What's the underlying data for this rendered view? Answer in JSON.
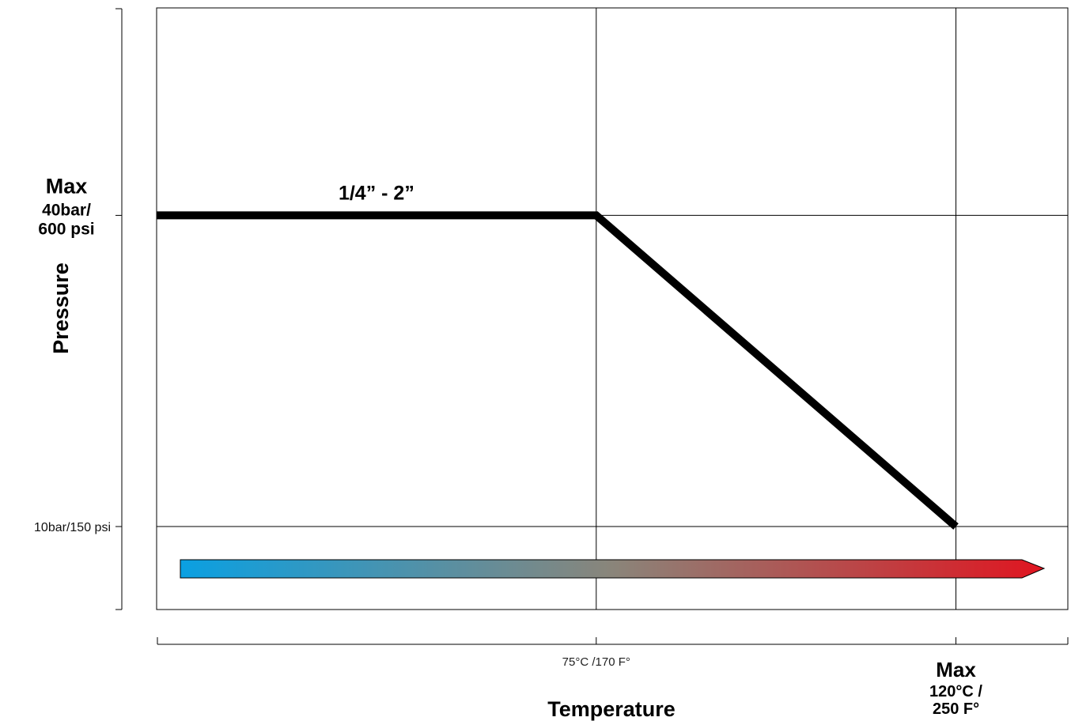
{
  "chart_data": {
    "type": "line",
    "title": "",
    "xlabel": "Temperature",
    "ylabel": "Pressure",
    "x_unit": "°C",
    "y_unit": "bar",
    "xlim": [
      20,
      134
    ],
    "ylim": [
      2,
      60
    ],
    "series": [
      {
        "name": "1/4” - 2”",
        "x": [
          20,
          75,
          120
        ],
        "y": [
          40,
          40,
          10
        ]
      }
    ],
    "x_ticks": [
      {
        "value": 75,
        "label": "75°C /170 F°",
        "emphasis": false
      },
      {
        "value": 120,
        "label_lines": [
          "Max",
          "120°C /",
          "250 F°"
        ],
        "emphasis": true
      }
    ],
    "y_ticks": [
      {
        "value": 40,
        "label_lines": [
          "Max",
          "40bar/",
          "600 psi"
        ],
        "emphasis": true
      },
      {
        "value": 10,
        "label": "10bar/150 psi",
        "emphasis": false
      }
    ],
    "grid": true,
    "temperature_gradient": {
      "from_color": "#0aa0e2",
      "mid_color": "#8a857a",
      "to_color": "#e01520"
    },
    "line_color": "#000000"
  }
}
